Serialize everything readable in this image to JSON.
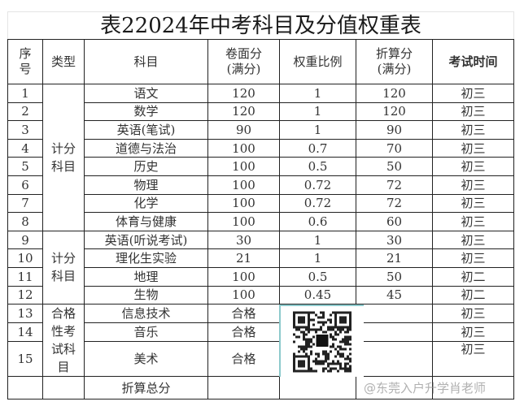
{
  "title": "表22024年中考科目及分值权重表",
  "headers": [
    "序号",
    "类型",
    "科目",
    "卷面分(满分)",
    "权重比例",
    "折算分(满分)",
    "考试时间"
  ],
  "groups": [
    "计分科目",
    "计分科目",
    "合格性考试科目"
  ],
  "rows": [
    {
      "no": "1",
      "subject": "语文",
      "raw": "120",
      "weight": "1",
      "converted": "120",
      "time": "初三"
    },
    {
      "no": "2",
      "subject": "数学",
      "raw": "120",
      "weight": "1",
      "converted": "120",
      "time": "初三"
    },
    {
      "no": "3",
      "subject": "英语(笔试)",
      "raw": "90",
      "weight": "1",
      "converted": "90",
      "time": "初三"
    },
    {
      "no": "4",
      "subject": "道德与法治",
      "raw": "100",
      "weight": "0.7",
      "converted": "70",
      "time": "初三"
    },
    {
      "no": "5",
      "subject": "历史",
      "raw": "100",
      "weight": "0.5",
      "converted": "50",
      "time": "初三"
    },
    {
      "no": "6",
      "subject": "物理",
      "raw": "100",
      "weight": "0.72",
      "converted": "72",
      "time": "初三"
    },
    {
      "no": "7",
      "subject": "化学",
      "raw": "100",
      "weight": "0.72",
      "converted": "72",
      "time": "初三"
    },
    {
      "no": "8",
      "subject": "体育与健康",
      "raw": "100",
      "weight": "0.6",
      "converted": "60",
      "time": "初三"
    },
    {
      "no": "9",
      "subject": "英语(听说考试)",
      "raw": "30",
      "weight": "1",
      "converted": "30",
      "time": "初三"
    },
    {
      "no": "10",
      "subject": "理化生实验",
      "raw": "21",
      "weight": "1",
      "converted": "21",
      "time": "初三"
    },
    {
      "no": "11",
      "subject": "地理",
      "raw": "100",
      "weight": "0.5",
      "converted": "50",
      "time": "初二"
    },
    {
      "no": "12",
      "subject": "生物",
      "raw": "100",
      "weight": "0.45",
      "converted": "45",
      "time": "初二"
    },
    {
      "no": "13",
      "subject": "信息技术",
      "raw": "合格",
      "weight": "",
      "converted": "",
      "time": "初三"
    },
    {
      "no": "14",
      "subject": "音乐",
      "raw": "合格",
      "weight": "",
      "converted": "",
      "time": "初三"
    },
    {
      "no": "15",
      "subject": "美术",
      "raw": "合格",
      "weight": "",
      "converted": "",
      "time": "初三"
    }
  ],
  "total_label": "折算总分",
  "watermark": "@东莞入户升学肖老师",
  "qr_icon": "qr-code-icon"
}
